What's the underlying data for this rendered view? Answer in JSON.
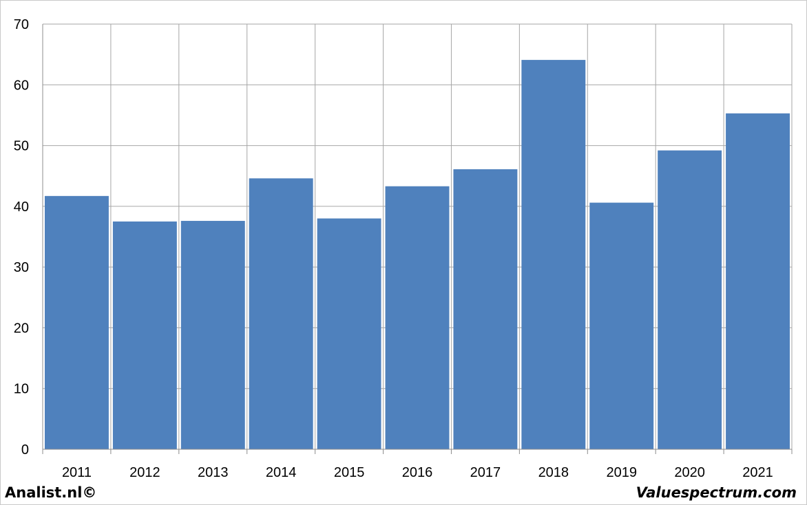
{
  "chart_data": {
    "type": "bar",
    "categories": [
      "2011",
      "2012",
      "2013",
      "2014",
      "2015",
      "2016",
      "2017",
      "2018",
      "2019",
      "2020",
      "2021"
    ],
    "values": [
      41.7,
      37.5,
      37.6,
      44.6,
      38.0,
      43.3,
      46.1,
      64.1,
      40.6,
      49.2,
      55.3
    ],
    "ylim": [
      0,
      70
    ],
    "yticks": [
      "0",
      "10",
      "20",
      "30",
      "40",
      "50",
      "60",
      "70"
    ],
    "grid": true,
    "bar_color": "#4f81bd",
    "grid_color": "#a6a6a6",
    "title": "",
    "xlabel": "",
    "ylabel": ""
  },
  "footer": {
    "left_text": "Analist.nl©",
    "right_text": "Valuespectrum.com"
  }
}
